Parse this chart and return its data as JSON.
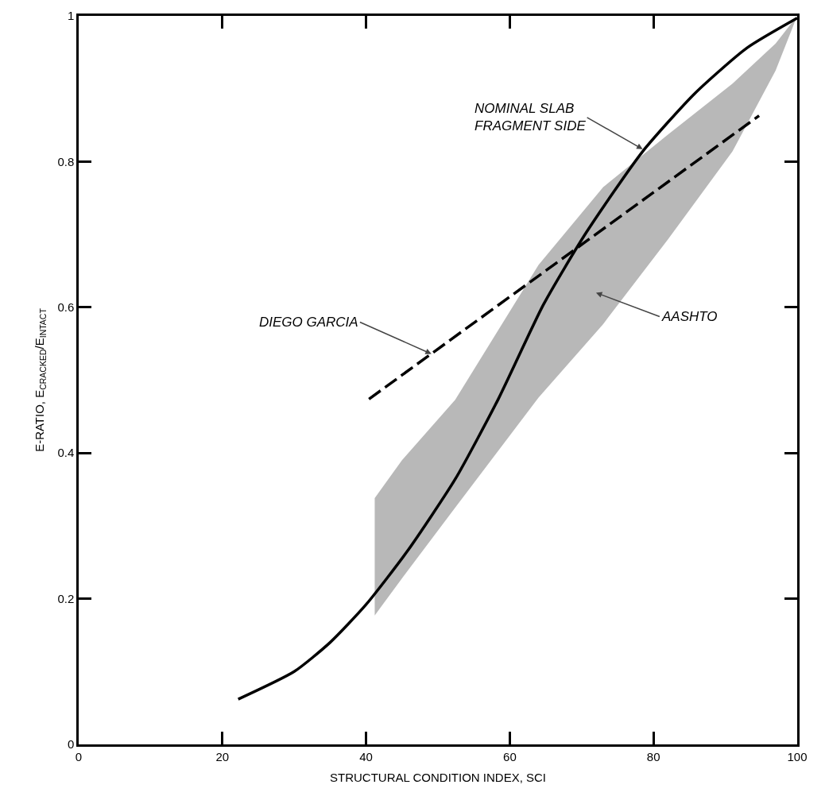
{
  "chart_data": {
    "type": "line",
    "xlabel": "STRUCTURAL CONDITION INDEX, SCI",
    "ylabel": "E-RATIO, E$_{CRACKED}$/E$_{INTACT}$",
    "xlim": [
      0,
      100
    ],
    "ylim": [
      0,
      1
    ],
    "xticks": [
      0,
      20,
      40,
      60,
      80,
      100
    ],
    "yticks": [
      0,
      0.2,
      0.4,
      0.6,
      0.8,
      1
    ],
    "grid": false,
    "marker": "none",
    "series": [
      {
        "type": "area",
        "color": "#b8b8b8",
        "x": [
          41.2,
          45,
          52.4,
          64,
          73,
          82,
          91,
          97,
          100
        ],
        "values": [
          null,
          null,
          null,
          null,
          null,
          null,
          null,
          null,
          null
        ],
        "lower": [
          0.177,
          0.228,
          0.325,
          0.476,
          0.577,
          0.693,
          0.814,
          0.925,
          1.0
        ],
        "upper": [
          0.338,
          0.39,
          0.473,
          0.658,
          0.765,
          0.837,
          0.907,
          0.962,
          1.0
        ]
      },
      {
        "color": "#000000",
        "line_style": "solid",
        "x": [
          22.2,
          30,
          35,
          40,
          45.8,
          52.4,
          58.4,
          64.7,
          70.6,
          78.5,
          85.8,
          93,
          100
        ],
        "values": [
          0.062,
          0.1,
          0.14,
          0.192,
          0.266,
          0.364,
          0.474,
          0.604,
          0.702,
          0.814,
          0.894,
          0.956,
          0.997
        ]
      },
      {
        "color": "#000000",
        "line_style": "dashed",
        "x": [
          40.4,
          94.7
        ],
        "values": [
          0.474,
          0.863
        ]
      }
    ],
    "annotations": [
      {
        "text": "NOMINAL SLAB\nFRAGMENT SIDE",
        "x": 78.5,
        "y": 0.817
      },
      {
        "text": "DIEGO GARCIA",
        "x": 49.1,
        "y": 0.536
      },
      "AASHTO"
    ]
  }
}
